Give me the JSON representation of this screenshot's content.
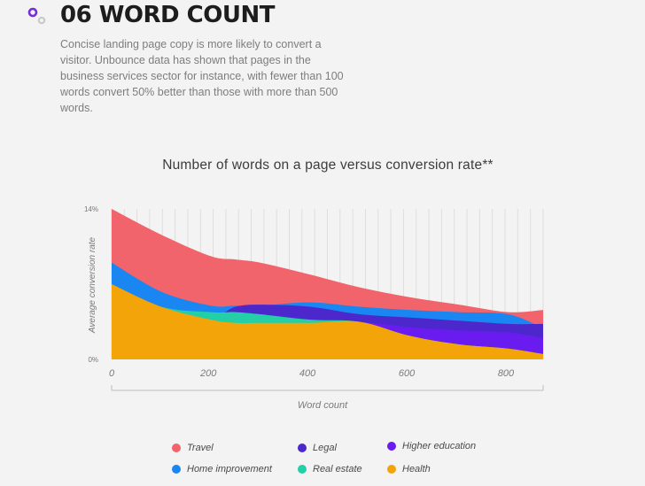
{
  "header": {
    "title": "06 WORD COUNT",
    "intro": "Concise landing page copy is more likely to convert a visitor. Unbounce data has shown that pages in the business services sector for instance, with fewer than 100 words convert 50% better than those with more than 500 words."
  },
  "colors": {
    "logo_primary": "#7a2bd8",
    "logo_secondary": "#c9c9c9",
    "grid": "#dedede",
    "axis": "#bdbdbd"
  },
  "chart_data": {
    "type": "area",
    "title": "Number of words on a page versus conversion rate**",
    "xlabel": "Word count",
    "ylabel": "Average conversion rate",
    "xlim": [
      0,
      870
    ],
    "ylim": [
      0,
      14
    ],
    "x_ticks": [
      0,
      200,
      400,
      600,
      800
    ],
    "y_tick_labels": [
      "0%",
      "14%"
    ],
    "grid": "vertical",
    "legend_position": "bottom",
    "x": [
      0,
      100,
      200,
      250,
      300,
      400,
      500,
      600,
      700,
      800,
      870
    ],
    "series": [
      {
        "name": "Travel",
        "color": "#f2646b",
        "values": [
          14.0,
          11.6,
          9.6,
          9.3,
          9.0,
          7.9,
          6.7,
          5.8,
          5.1,
          4.4,
          4.6
        ]
      },
      {
        "name": "Home improvement",
        "color": "#1a86f2",
        "values": [
          9.0,
          6.3,
          5.0,
          5.0,
          5.0,
          5.3,
          4.9,
          4.6,
          4.4,
          4.2,
          2.9
        ]
      },
      {
        "name": "Legal",
        "color": "#4c28cc",
        "values": [
          6.9,
          4.9,
          4.0,
          4.9,
          5.1,
          4.9,
          4.2,
          3.9,
          3.6,
          3.3,
          3.3
        ]
      },
      {
        "name": "Higher education",
        "color": "#6a1cf0",
        "values": [
          6.7,
          4.6,
          3.8,
          3.6,
          3.5,
          3.5,
          3.5,
          3.0,
          2.7,
          2.5,
          2.0
        ]
      },
      {
        "name": "Real estate",
        "color": "#22cfa6",
        "values": [
          7.0,
          4.9,
          4.4,
          4.4,
          4.2,
          3.7,
          3.5,
          2.2,
          1.4,
          1.0,
          0.5
        ]
      },
      {
        "name": "Health",
        "color": "#f2a408",
        "values": [
          7.0,
          4.9,
          3.7,
          3.4,
          3.4,
          3.4,
          3.5,
          2.2,
          1.4,
          1.0,
          0.5
        ]
      }
    ]
  }
}
